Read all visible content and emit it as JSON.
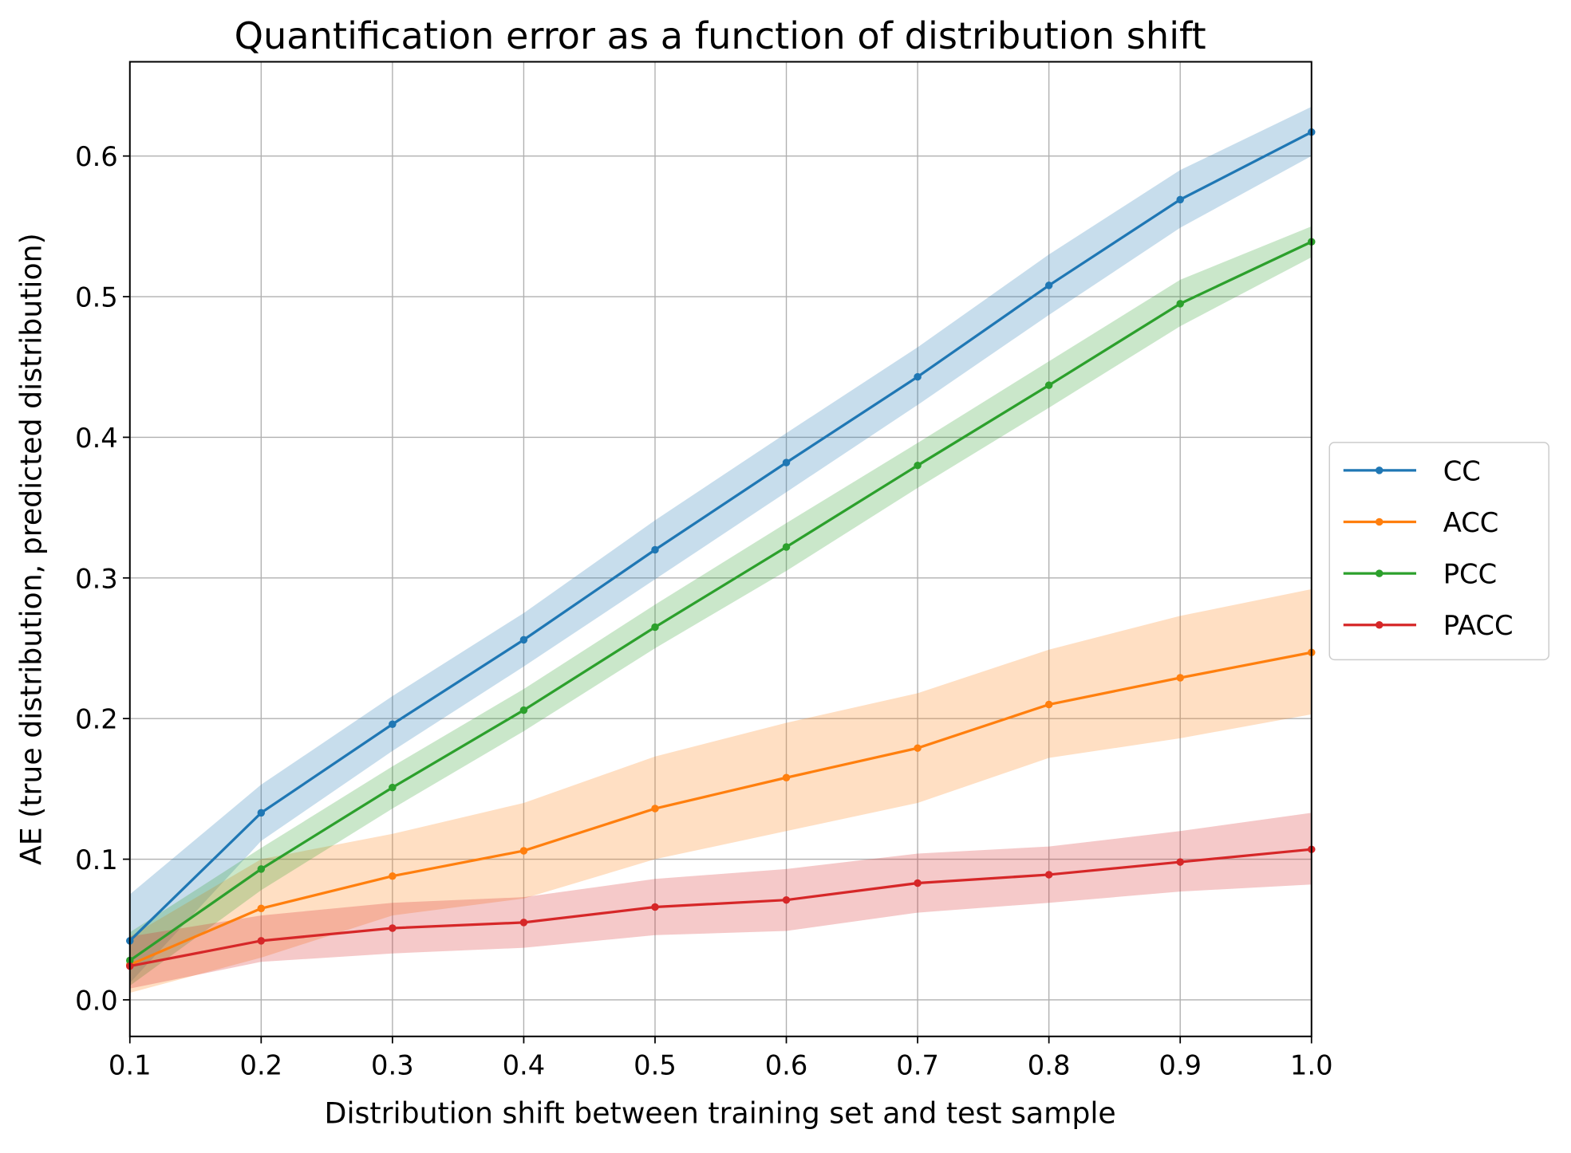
{
  "chart_data": {
    "type": "line",
    "title": "Quantification error as a function of distribution shift",
    "xlabel": "Distribution shift between training set and test sample",
    "ylabel": "AE (true distribution, predicted distribution)",
    "xlim": [
      0.1,
      1.0
    ],
    "ylim": [
      -0.026,
      0.667
    ],
    "grid": true,
    "legend_placement": "center-right outside",
    "x": [
      0.1,
      0.2,
      0.3,
      0.4,
      0.5,
      0.6,
      0.7,
      0.8,
      0.9,
      1.0
    ],
    "xticks": [
      "0.1",
      "0.2",
      "0.3",
      "0.4",
      "0.5",
      "0.6",
      "0.7",
      "0.8",
      "0.9",
      "1.0"
    ],
    "yticks": [
      0.0,
      0.1,
      0.2,
      0.3,
      0.4,
      0.5,
      0.6
    ],
    "ytick_labels": [
      "0.0",
      "0.1",
      "0.2",
      "0.3",
      "0.4",
      "0.5",
      "0.6"
    ],
    "series": [
      {
        "name": "CC",
        "color": "#1f77b4",
        "values": [
          0.042,
          0.133,
          0.196,
          0.256,
          0.32,
          0.382,
          0.443,
          0.508,
          0.569,
          0.617
        ],
        "lower": [
          0.012,
          0.113,
          0.177,
          0.237,
          0.299,
          0.361,
          0.423,
          0.487,
          0.549,
          0.6
        ],
        "upper": [
          0.075,
          0.153,
          0.216,
          0.275,
          0.341,
          0.403,
          0.464,
          0.53,
          0.59,
          0.635
        ]
      },
      {
        "name": "ACC",
        "color": "#ff7f0e",
        "values": [
          0.025,
          0.065,
          0.088,
          0.106,
          0.136,
          0.158,
          0.179,
          0.21,
          0.229,
          0.247
        ],
        "lower": [
          0.005,
          0.03,
          0.06,
          0.072,
          0.1,
          0.12,
          0.14,
          0.172,
          0.186,
          0.203
        ],
        "upper": [
          0.045,
          0.1,
          0.118,
          0.14,
          0.173,
          0.197,
          0.218,
          0.249,
          0.273,
          0.292
        ]
      },
      {
        "name": "PCC",
        "color": "#2ca02c",
        "values": [
          0.028,
          0.093,
          0.151,
          0.206,
          0.265,
          0.322,
          0.38,
          0.437,
          0.495,
          0.539
        ],
        "lower": [
          0.01,
          0.078,
          0.136,
          0.191,
          0.25,
          0.305,
          0.364,
          0.421,
          0.479,
          0.528
        ],
        "upper": [
          0.048,
          0.108,
          0.166,
          0.221,
          0.281,
          0.339,
          0.396,
          0.454,
          0.512,
          0.55
        ]
      },
      {
        "name": "PACC",
        "color": "#d62728",
        "values": [
          0.024,
          0.042,
          0.051,
          0.055,
          0.066,
          0.071,
          0.083,
          0.089,
          0.098,
          0.107
        ],
        "lower": [
          0.008,
          0.027,
          0.033,
          0.037,
          0.046,
          0.049,
          0.062,
          0.069,
          0.077,
          0.082
        ],
        "upper": [
          0.045,
          0.06,
          0.069,
          0.073,
          0.086,
          0.093,
          0.104,
          0.109,
          0.12,
          0.133
        ]
      }
    ]
  }
}
